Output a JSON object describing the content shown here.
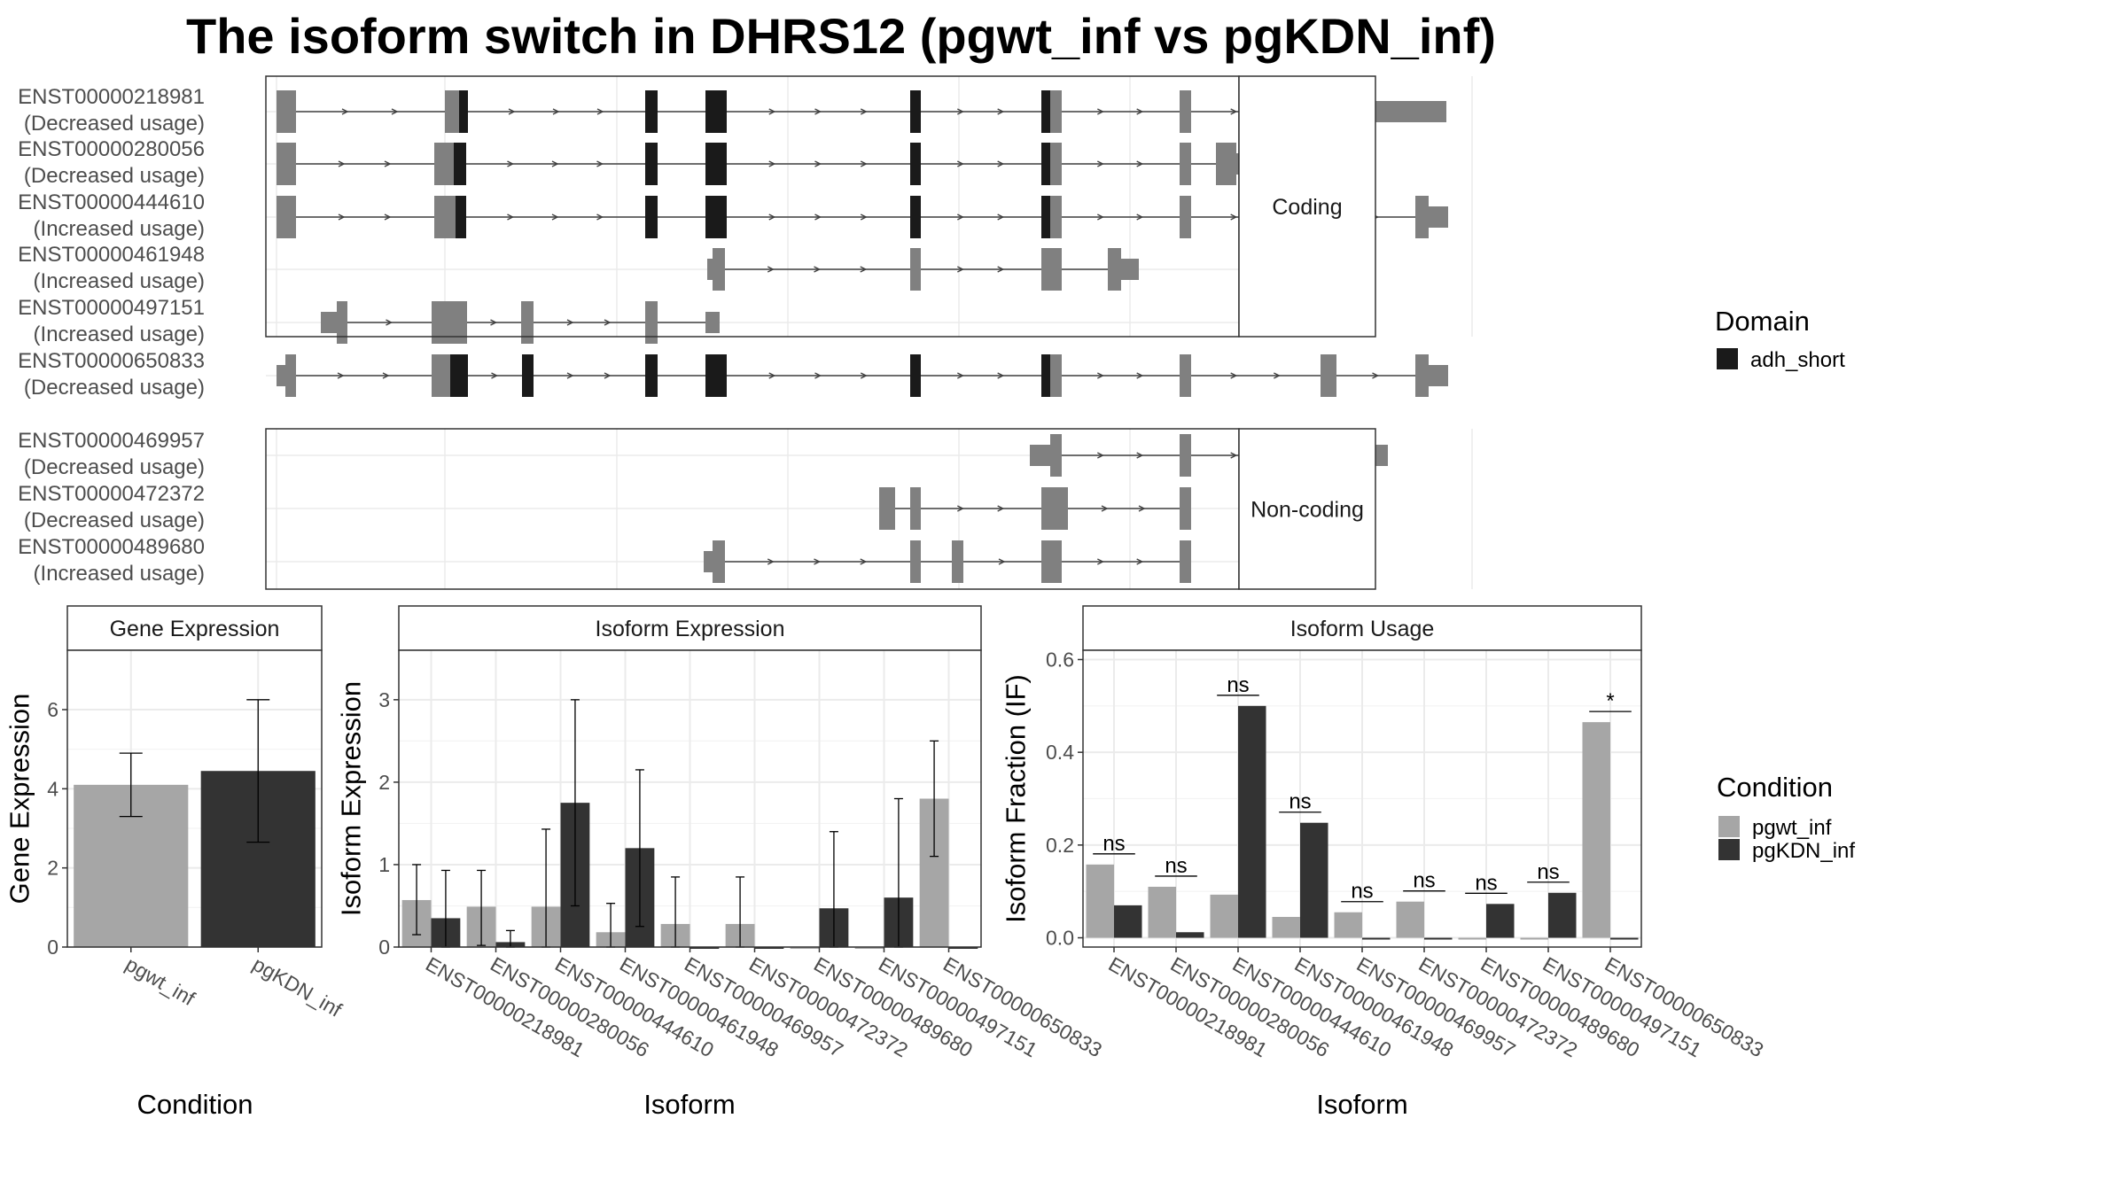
{
  "title": "The isoform switch in DHRS12 (pgwt_inf vs pgKDN_inf)",
  "structure": {
    "facets": [
      {
        "name": "Coding",
        "isoforms": [
          {
            "id": "ENST00000218981",
            "usage": "(Decreased usage)"
          },
          {
            "id": "ENST00000280056",
            "usage": "(Decreased usage)"
          },
          {
            "id": "ENST00000444610",
            "usage": "(Increased usage)"
          },
          {
            "id": "ENST00000461948",
            "usage": "(Increased usage)"
          },
          {
            "id": "ENST00000497151",
            "usage": "(Increased usage)"
          },
          {
            "id": "ENST00000650833",
            "usage": "(Decreased usage)"
          }
        ]
      },
      {
        "name": "Non-coding",
        "isoforms": [
          {
            "id": "ENST00000469957",
            "usage": "(Decreased usage)"
          },
          {
            "id": "ENST00000472372",
            "usage": "(Decreased usage)"
          },
          {
            "id": "ENST00000489680",
            "usage": "(Increased usage)"
          }
        ]
      }
    ],
    "domain_legend": {
      "title": "Domain",
      "items": [
        {
          "label": "adh_short",
          "color": "#1a1a1a"
        }
      ]
    },
    "colors": {
      "exon": "#808080",
      "domain": "#1a1a1a",
      "intron": "#404040"
    }
  },
  "condition_legend": {
    "title": "Condition",
    "items": [
      {
        "label": "pgwt_inf",
        "color": "#a6a6a6"
      },
      {
        "label": "pgKDN_inf",
        "color": "#333333"
      }
    ]
  },
  "chart_data": [
    {
      "type": "bar",
      "title": "Gene Expression",
      "xlabel": "Condition",
      "ylabel": "Gene Expression",
      "ylim": [
        0,
        7.5
      ],
      "yticks": [
        0,
        2,
        4,
        6
      ],
      "categories": [
        "pgwt_inf",
        "pgKDN_inf"
      ],
      "values": [
        4.1,
        4.45
      ],
      "error_low": [
        3.3,
        2.65
      ],
      "error_high": [
        4.9,
        6.25
      ],
      "colors": [
        "#a6a6a6",
        "#333333"
      ]
    },
    {
      "type": "bar",
      "title": "Isoform Expression",
      "xlabel": "Isoform",
      "ylabel": "Isoform Expression",
      "ylim": [
        0,
        3.6
      ],
      "yticks": [
        0,
        1,
        2,
        3
      ],
      "categories": [
        "ENST00000218981",
        "ENST00000280056",
        "ENST00000444610",
        "ENST00000461948",
        "ENST00000469957",
        "ENST00000472372",
        "ENST00000489680",
        "ENST00000497151",
        "ENST00000650833"
      ],
      "series": [
        {
          "name": "pgwt_inf",
          "values": [
            0.57,
            0.49,
            0.49,
            0.18,
            0.28,
            0.28,
            0.0,
            0.0,
            1.8
          ],
          "error_low": [
            0.15,
            0.02,
            0.0,
            0.0,
            0.0,
            0.0,
            0.0,
            0.0,
            1.1
          ],
          "error_high": [
            1.0,
            0.93,
            1.43,
            0.53,
            0.85,
            0.85,
            0.0,
            0.0,
            2.5
          ]
        },
        {
          "name": "pgKDN_inf",
          "values": [
            0.35,
            0.06,
            1.75,
            1.2,
            0.0,
            0.0,
            0.47,
            0.6,
            0.0
          ],
          "error_low": [
            0.0,
            0.0,
            0.5,
            0.25,
            0.0,
            0.0,
            0.0,
            0.0,
            0.0
          ],
          "error_high": [
            0.93,
            0.2,
            3.0,
            2.15,
            0.0,
            0.0,
            1.4,
            1.8,
            0.0
          ]
        }
      ]
    },
    {
      "type": "bar",
      "title": "Isoform Usage",
      "xlabel": "Isoform",
      "ylabel": "Isoform Fraction (IF)",
      "ylim": [
        -0.02,
        0.62
      ],
      "yticks": [
        0.0,
        0.2,
        0.4,
        0.6
      ],
      "categories": [
        "ENST00000218981",
        "ENST00000280056",
        "ENST00000444610",
        "ENST00000461948",
        "ENST00000469957",
        "ENST00000472372",
        "ENST00000489680",
        "ENST00000497151",
        "ENST00000650833"
      ],
      "series": [
        {
          "name": "pgwt_inf",
          "values": [
            0.158,
            0.11,
            0.093,
            0.045,
            0.055,
            0.078,
            0.0,
            0.0,
            0.465
          ]
        },
        {
          "name": "pgKDN_inf",
          "values": [
            0.07,
            0.012,
            0.5,
            0.248,
            0.0,
            0.0,
            0.073,
            0.097,
            0.0
          ]
        }
      ],
      "significance": [
        "ns",
        "ns",
        "ns",
        "ns",
        "ns",
        "ns",
        "ns",
        "ns",
        "*"
      ]
    }
  ]
}
